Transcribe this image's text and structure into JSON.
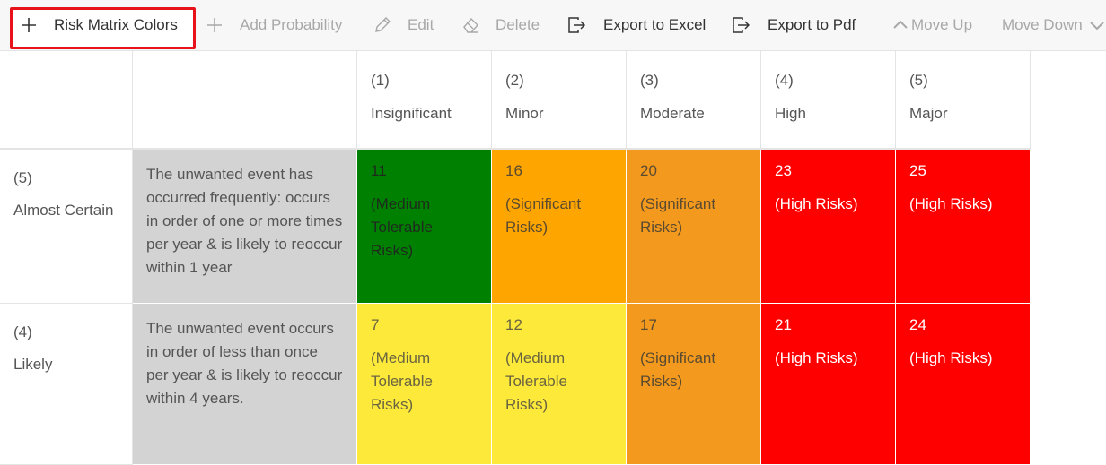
{
  "toolbar": [
    {
      "label": "Risk Matrix Colors",
      "enabled": true
    },
    {
      "label": "Add Probability",
      "enabled": false
    },
    {
      "label": "Edit",
      "enabled": false
    },
    {
      "label": "Delete",
      "enabled": false
    },
    {
      "label": "Export to Excel",
      "enabled": true
    },
    {
      "label": "Export to Pdf",
      "enabled": true
    },
    {
      "label": "Move Up",
      "enabled": false
    },
    {
      "label": "Move Down",
      "enabled": false
    }
  ],
  "matrix": {
    "columns": [
      {
        "number": "(1)",
        "label": "Insignificant"
      },
      {
        "number": "(2)",
        "label": "Minor"
      },
      {
        "number": "(3)",
        "label": "Moderate"
      },
      {
        "number": "(4)",
        "label": "High"
      },
      {
        "number": "(5)",
        "label": "Major"
      }
    ],
    "rows": [
      {
        "number": "(5)",
        "label": "Almost Certain",
        "description": "The unwanted event has occurred frequently: occurs in order of one or more times per year & is likely to reoccur within 1 year",
        "cells": [
          {
            "score": 11,
            "label": "(Medium Tolerable Risks)",
            "color": "#008000",
            "text_color": "#1e2a1e"
          },
          {
            "score": 16,
            "label": "(Significant Risks)",
            "color": "#ffa500",
            "text_color": "#5a4a30"
          },
          {
            "score": 20,
            "label": "(Significant Risks)",
            "color": "#f39a1e",
            "text_color": "#5a4a30"
          },
          {
            "score": 23,
            "label": "(High Risks)",
            "color": "#ff0000",
            "text_color": "#ffffff"
          },
          {
            "score": 25,
            "label": "(High Risks)",
            "color": "#ff0000",
            "text_color": "#ffffff"
          }
        ]
      },
      {
        "number": "(4)",
        "label": "Likely",
        "description": "The unwanted event occurs in order of less than once per year & is likely to reoccur within 4 years.",
        "cells": [
          {
            "score": 7,
            "label": "(Medium Tolerable Risks)",
            "color": "#fde93a",
            "text_color": "#6a6440"
          },
          {
            "score": 12,
            "label": "(Medium Tolerable Risks)",
            "color": "#fde93a",
            "text_color": "#6a6440"
          },
          {
            "score": 17,
            "label": "(Significant Risks)",
            "color": "#f39a1e",
            "text_color": "#5a4a30"
          },
          {
            "score": 21,
            "label": "(High Risks)",
            "color": "#ff0000",
            "text_color": "#ffffff"
          },
          {
            "score": 24,
            "label": "(High Risks)",
            "color": "#ff0000",
            "text_color": "#ffffff"
          }
        ]
      }
    ]
  }
}
